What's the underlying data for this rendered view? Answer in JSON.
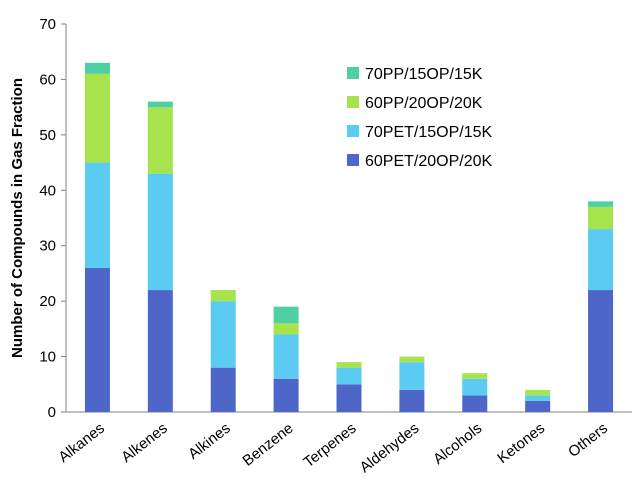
{
  "chart_data": {
    "type": "bar",
    "stacked": true,
    "title": "",
    "xlabel": "",
    "ylabel": "Number of Compounds in Gas Fraction",
    "ylim": [
      0,
      70
    ],
    "yticks": [
      0,
      10,
      20,
      30,
      40,
      50,
      60,
      70
    ],
    "grid": false,
    "legend_position": "top-right",
    "categories": [
      "Alkanes",
      "Alkenes",
      "Alkines",
      "Benzene",
      "Terpenes",
      "Aldehydes",
      "Alcohols",
      "Ketones",
      "Others"
    ],
    "series": [
      {
        "name": "60PET/20OP/20K",
        "color": "#4F66C9",
        "values": [
          26,
          22,
          8,
          6,
          5,
          4,
          3,
          2,
          22
        ]
      },
      {
        "name": "70PET/15OP/15K",
        "color": "#5BCBF2",
        "values": [
          19,
          21,
          12,
          8,
          3,
          5,
          3,
          1,
          11
        ]
      },
      {
        "name": "60PP/20OP/20K",
        "color": "#A6E34C",
        "values": [
          16,
          12,
          2,
          2,
          1,
          1,
          1,
          1,
          4
        ]
      },
      {
        "name": "70PP/15OP/15K",
        "color": "#4FCFA4",
        "values": [
          2,
          1,
          0,
          3,
          0,
          0,
          0,
          0,
          1
        ]
      }
    ],
    "legend_order": [
      "70PP/15OP/15K",
      "60PP/20OP/20K",
      "70PET/15OP/15K",
      "60PET/20OP/20K"
    ]
  }
}
